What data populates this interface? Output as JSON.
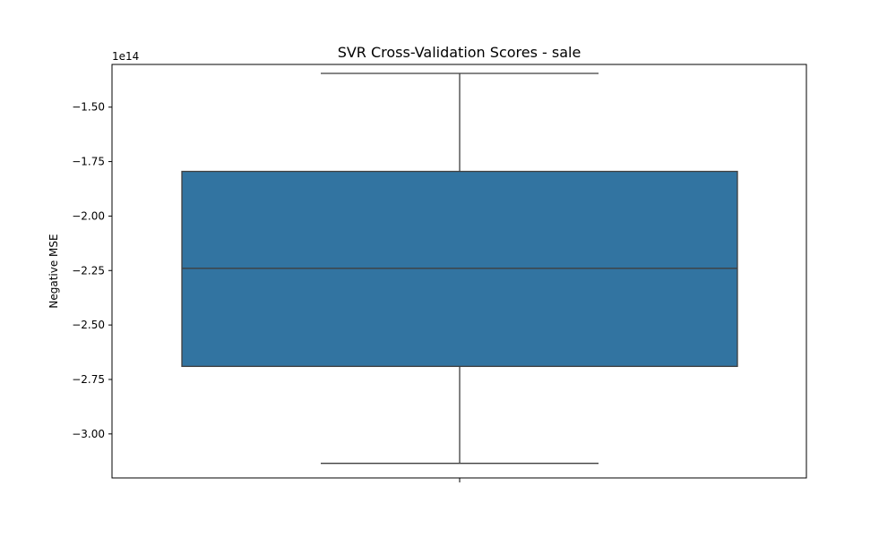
{
  "chart_data": {
    "type": "box",
    "title": "SVR Cross-Validation Scores - sale",
    "xlabel": "",
    "ylabel": "Negative MSE",
    "offset_label": "1e14",
    "ylim": [
      -3.202,
      -1.304
    ],
    "yticks": [
      -1.5,
      -1.75,
      -2.0,
      -2.25,
      -2.5,
      -2.75,
      -3.0
    ],
    "ytick_labels": [
      "−1.50",
      "−1.75",
      "−2.00",
      "−2.25",
      "−2.50",
      "−2.75",
      "−3.00"
    ],
    "y_scale_factor": 100000000000000.0,
    "box": {
      "whisker_high": -1.345,
      "q3": -1.795,
      "median": -2.24,
      "q1": -2.69,
      "whisker_low": -3.135
    },
    "colors": {
      "box_fill": "#3274a1",
      "line": "#3f3f3f"
    },
    "grid": false
  }
}
